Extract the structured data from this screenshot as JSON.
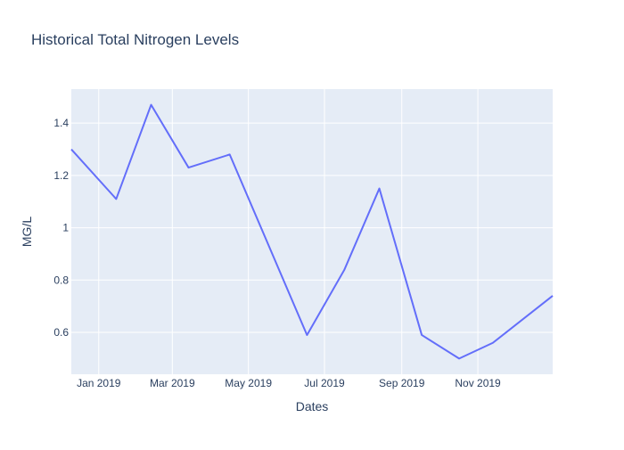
{
  "colors": {
    "plot_bg": "#E5ECF6",
    "grid": "#ffffff",
    "line": "#636EFA",
    "text": "#2a3f5f",
    "tick_text": "#2a3f5f"
  },
  "chart_data": {
    "type": "line",
    "title": "Historical Total Nitrogen Levels",
    "xlabel": "Dates",
    "ylabel": "MG/L",
    "x_type": "date",
    "xlim": [
      "2018-12-10",
      "2019-12-31"
    ],
    "ylim": [
      0.44,
      1.53
    ],
    "grid": true,
    "x_ticks": [
      {
        "date": "2019-01-01",
        "label": "Jan 2019"
      },
      {
        "date": "2019-03-01",
        "label": "Mar 2019"
      },
      {
        "date": "2019-05-01",
        "label": "May 2019"
      },
      {
        "date": "2019-07-01",
        "label": "Jul 2019"
      },
      {
        "date": "2019-09-01",
        "label": "Sep 2019"
      },
      {
        "date": "2019-11-01",
        "label": "Nov 2019"
      }
    ],
    "y_ticks": [
      {
        "value": 0.6,
        "label": "0.6"
      },
      {
        "value": 0.8,
        "label": "0.8"
      },
      {
        "value": 1.0,
        "label": "1"
      },
      {
        "value": 1.2,
        "label": "1.2"
      },
      {
        "value": 1.4,
        "label": "1.4"
      }
    ],
    "series": [
      {
        "x": [
          "2018-12-10",
          "2019-01-15",
          "2019-02-12",
          "2019-03-14",
          "2019-04-16",
          "2019-06-17",
          "2019-07-17",
          "2019-08-14",
          "2019-09-17",
          "2019-10-17",
          "2019-11-13",
          "2019-12-31"
        ],
        "y": [
          1.3,
          1.11,
          1.47,
          1.23,
          1.28,
          0.59,
          0.84,
          1.15,
          0.59,
          0.5,
          0.56,
          0.74
        ]
      }
    ]
  }
}
